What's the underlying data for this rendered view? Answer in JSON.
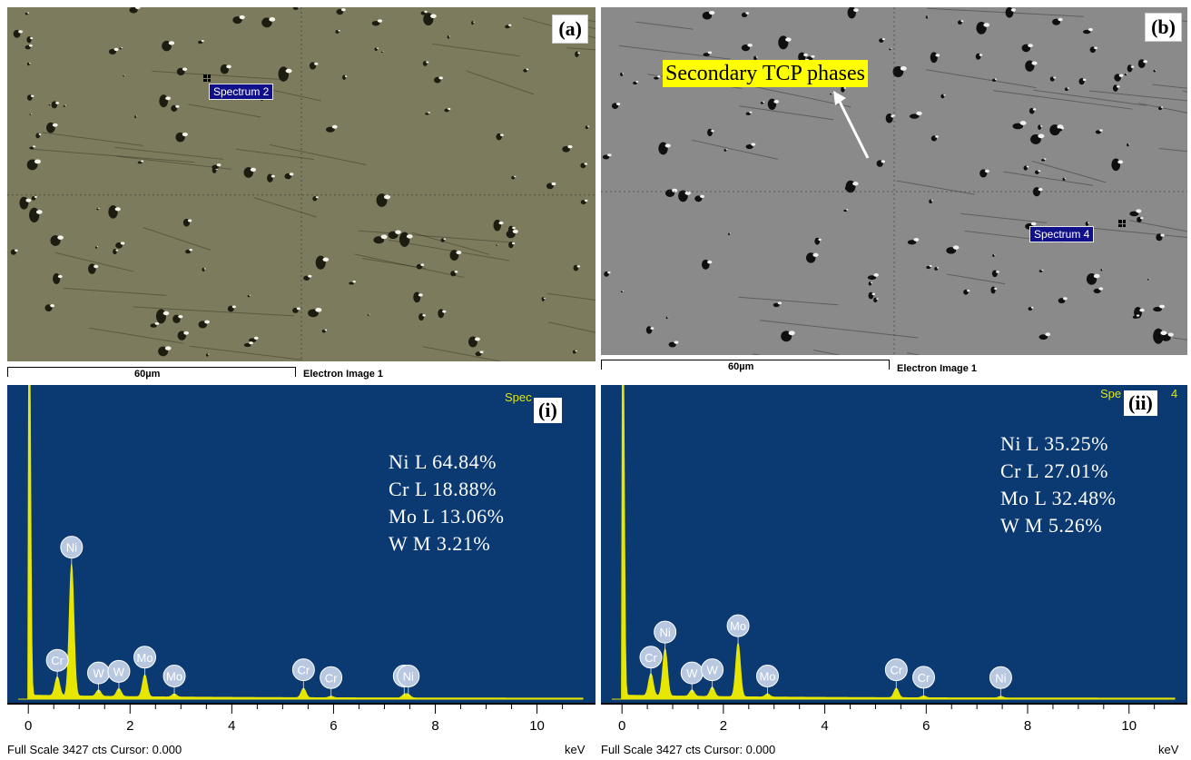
{
  "panels": {
    "a": {
      "letter": "(a)",
      "spectrum_tag": "Spectrum 2",
      "scale_label": "60µm",
      "image_label": "Electron Image 1"
    },
    "b": {
      "letter": "(b)",
      "spectrum_tag": "Spectrum 4",
      "scale_label": "60µm",
      "image_label": "Electron Image 1",
      "annotation": "Secondary TCP phases"
    }
  },
  "chart_data": [
    {
      "type": "line",
      "panel_label": "(i)",
      "spectrum_corner": "Spec",
      "xlim": [
        -0.2,
        10.9
      ],
      "xticks": [
        0,
        2,
        4,
        6,
        8,
        10
      ],
      "xlabel": "keV",
      "footer": "Full Scale 3427 cts Cursor: 0.000",
      "composition": [
        "Ni L 64.84%",
        "Cr  L 18.88%",
        "Mo L 13.06%",
        "W  M 3.21%"
      ],
      "peaks": [
        {
          "element": "Cr",
          "x": 0.57,
          "y": 0.06
        },
        {
          "element": "Ni",
          "x": 0.85,
          "y": 0.42
        },
        {
          "element": "W",
          "x": 1.38,
          "y": 0.02
        },
        {
          "element": "W",
          "x": 1.78,
          "y": 0.025
        },
        {
          "element": "Mo",
          "x": 2.29,
          "y": 0.07
        },
        {
          "element": "Mo",
          "x": 2.87,
          "y": 0.01
        },
        {
          "element": "Cr",
          "x": 5.41,
          "y": 0.03
        },
        {
          "element": "Cr",
          "x": 5.95,
          "y": 0.005
        },
        {
          "element": "W",
          "x": 7.39,
          "y": 0.01
        },
        {
          "element": "Ni",
          "x": 7.47,
          "y": 0.01
        }
      ]
    },
    {
      "type": "line",
      "panel_label": "(ii)",
      "spectrum_corner": "Spe",
      "spectrum_corner_tail": "4",
      "xlim": [
        -0.2,
        10.9
      ],
      "xticks": [
        0,
        2,
        4,
        6,
        8,
        10
      ],
      "xlabel": "keV",
      "footer": "Full Scale 3427 cts Cursor: 0.000",
      "composition": [
        "Ni L 35.25%",
        "Cr  L 27.01%",
        "Mo L 32.48%",
        "W M 5.26%"
      ],
      "peaks": [
        {
          "element": "Cr",
          "x": 0.57,
          "y": 0.07
        },
        {
          "element": "Ni",
          "x": 0.85,
          "y": 0.15
        },
        {
          "element": "W",
          "x": 1.38,
          "y": 0.02
        },
        {
          "element": "W",
          "x": 1.78,
          "y": 0.03
        },
        {
          "element": "Mo",
          "x": 2.29,
          "y": 0.17
        },
        {
          "element": "Mo",
          "x": 2.87,
          "y": 0.01
        },
        {
          "element": "Cr",
          "x": 5.41,
          "y": 0.03
        },
        {
          "element": "Cr",
          "x": 5.95,
          "y": 0.006
        },
        {
          "element": "Ni",
          "x": 7.47,
          "y": 0.005
        }
      ]
    }
  ],
  "colors": {
    "sem_a": "#7d7b5e",
    "sem_b": "#8a8a8a",
    "eds_bg": "#0b3a72",
    "eds_line": "#e6e600",
    "peak_label": "#b8c8e0"
  }
}
